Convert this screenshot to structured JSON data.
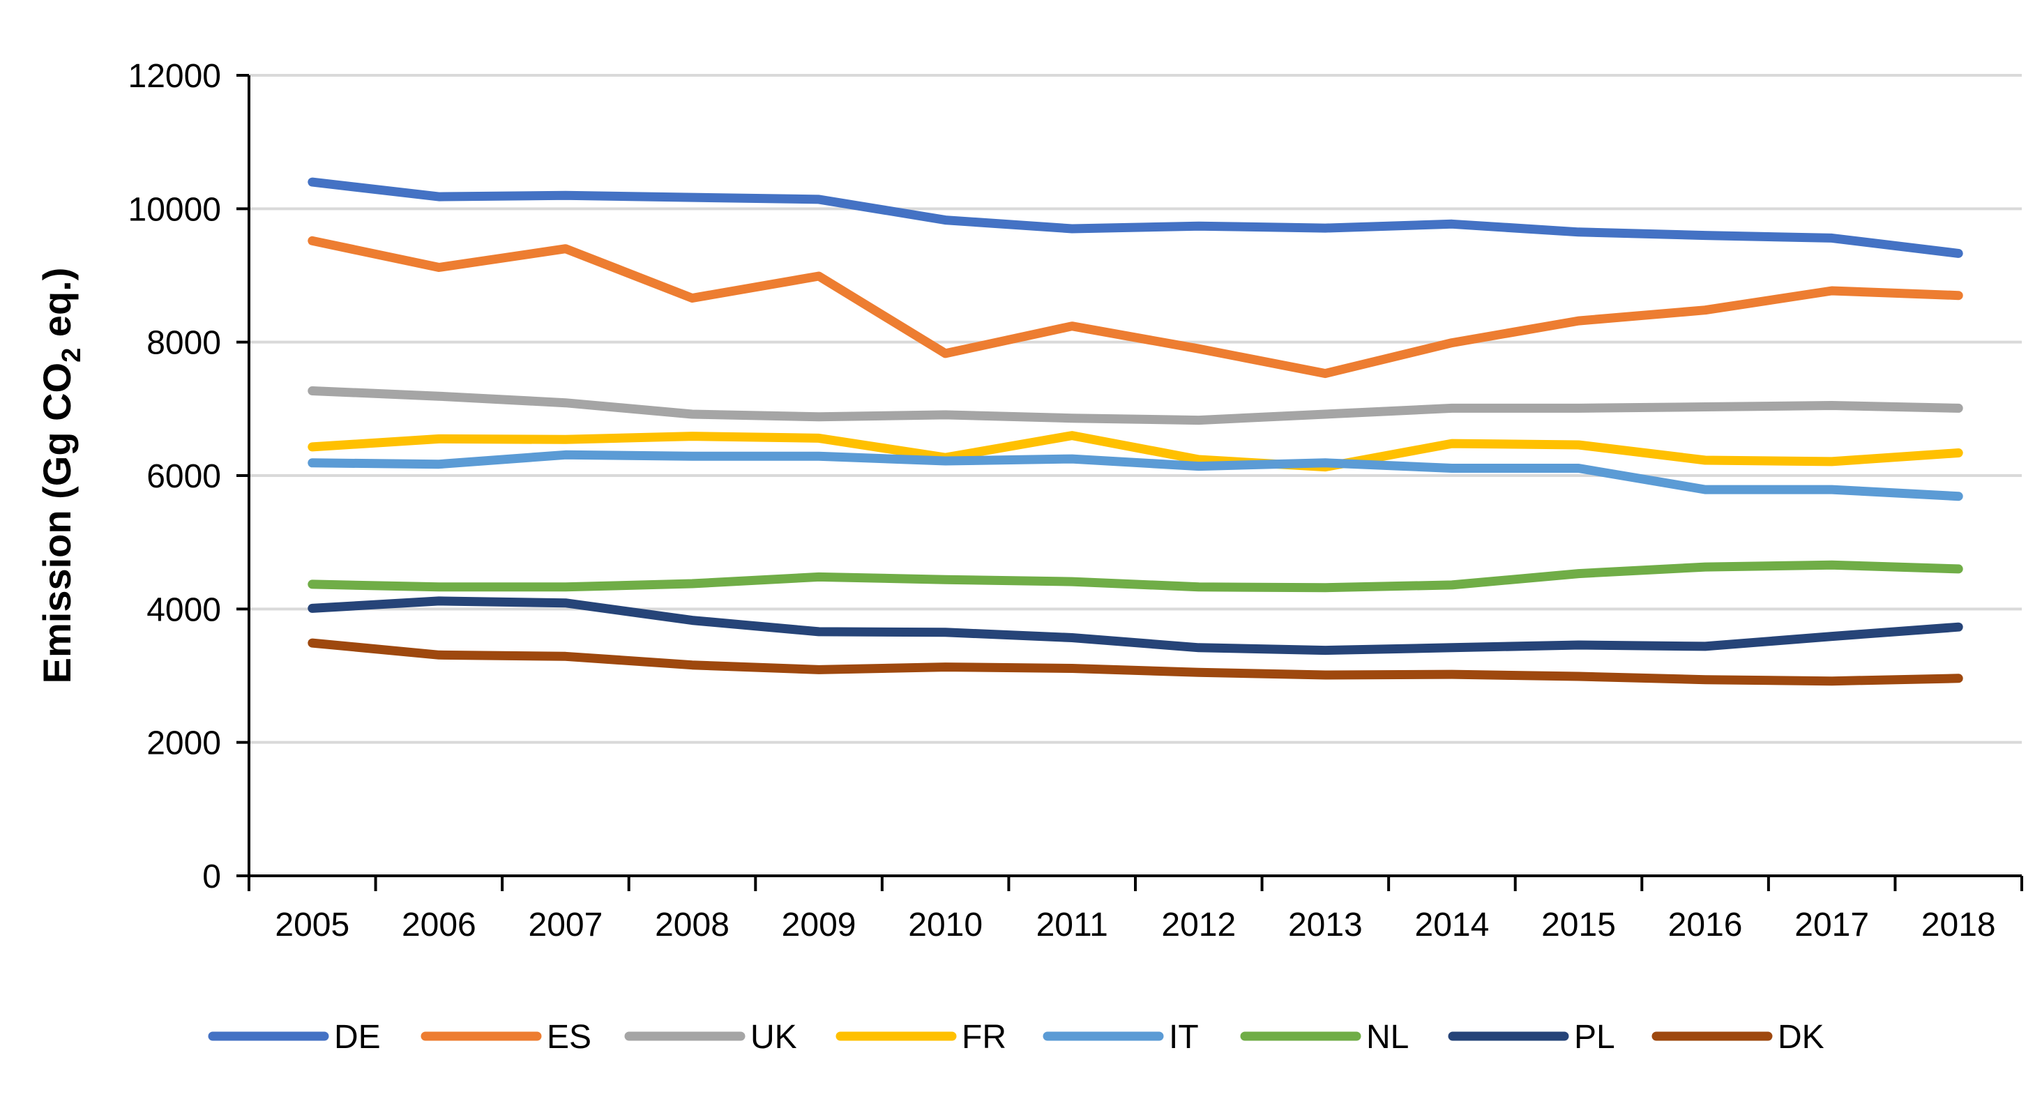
{
  "chart_data": {
    "type": "line",
    "title": "",
    "xlabel": "",
    "ylabel": {
      "prefix": "Emission (Gg CO",
      "subscript": "2",
      "suffix": " eq.)"
    },
    "ylim": [
      0,
      12000
    ],
    "yticks": [
      "0",
      "2000",
      "4000",
      "6000",
      "8000",
      "10000",
      "12000"
    ],
    "grid": true,
    "legend_position": "bottom",
    "categories": [
      "2005",
      "2006",
      "2007",
      "2008",
      "2009",
      "2010",
      "2011",
      "2012",
      "2013",
      "2014",
      "2015",
      "2016",
      "2017",
      "2018"
    ],
    "series": [
      {
        "name": "DE",
        "color": "#4472C4",
        "values": [
          10400,
          10180,
          10200,
          10170,
          10140,
          9830,
          9700,
          9740,
          9710,
          9770,
          9650,
          9600,
          9560,
          9330
        ]
      },
      {
        "name": "ES",
        "color": "#ED7D31",
        "values": [
          9520,
          9120,
          9400,
          8660,
          8990,
          7830,
          8240,
          7900,
          7530,
          7990,
          8320,
          8480,
          8770,
          8700
        ]
      },
      {
        "name": "UK",
        "color": "#A5A5A5",
        "values": [
          7270,
          7190,
          7090,
          6920,
          6880,
          6910,
          6860,
          6830,
          6920,
          7010,
          7010,
          7030,
          7050,
          7010
        ]
      },
      {
        "name": "FR",
        "color": "#FFC000",
        "values": [
          6430,
          6550,
          6540,
          6590,
          6560,
          6270,
          6600,
          6240,
          6130,
          6480,
          6460,
          6230,
          6210,
          6340
        ]
      },
      {
        "name": "IT",
        "color": "#5B9BD5",
        "values": [
          6190,
          6170,
          6310,
          6290,
          6290,
          6220,
          6250,
          6140,
          6190,
          6110,
          6110,
          5790,
          5790,
          5690
        ]
      },
      {
        "name": "NL",
        "color": "#70AD47",
        "values": [
          4370,
          4330,
          4330,
          4380,
          4480,
          4440,
          4410,
          4330,
          4320,
          4360,
          4530,
          4630,
          4660,
          4600
        ]
      },
      {
        "name": "PL",
        "color": "#264478",
        "values": [
          4010,
          4120,
          4090,
          3830,
          3660,
          3650,
          3570,
          3420,
          3380,
          3420,
          3460,
          3440,
          3590,
          3730
        ]
      },
      {
        "name": "DK",
        "color": "#9E480E",
        "values": [
          3490,
          3310,
          3290,
          3160,
          3090,
          3130,
          3110,
          3050,
          3010,
          3020,
          2990,
          2940,
          2920,
          2960
        ]
      }
    ]
  }
}
